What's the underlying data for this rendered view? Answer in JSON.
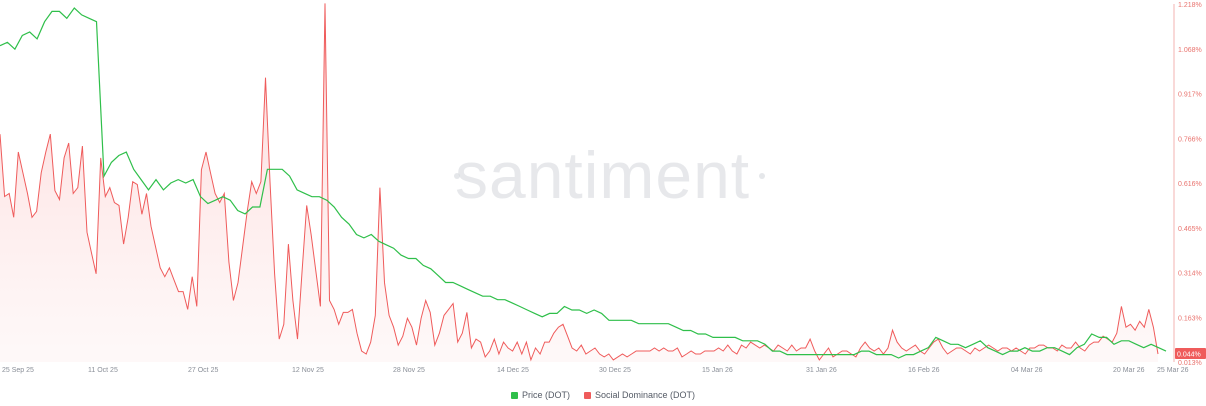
{
  "chart_data": {
    "type": "line",
    "watermark": "santiment",
    "x_tick_labels": [
      "25 Sep 25",
      "11 Oct 25",
      "27 Oct 25",
      "12 Nov 25",
      "28 Nov 25",
      "14 Dec 25",
      "30 Dec 25",
      "15 Jan 26",
      "31 Jan 26",
      "16 Feb 26",
      "04 Mar 26",
      "20 Mar 26",
      "25 Mar 26"
    ],
    "y_right_ticks": [
      "1.218%",
      "1.068%",
      "0.917%",
      "0.766%",
      "0.616%",
      "0.465%",
      "0.314%",
      "0.163%",
      "0.013%"
    ],
    "y_right_range": [
      0.013,
      1.218
    ],
    "current_value_label": "0.044%",
    "colors": {
      "price": "#2fbf4a",
      "social": "#ef5b5b",
      "fill": "#fde4e4"
    },
    "series": [
      {
        "name": "Price (DOT)",
        "axis": "hidden",
        "color": "#2fbf4a",
        "values": [
          94,
          95,
          93,
          97,
          98,
          96,
          101,
          104,
          104,
          102,
          105,
          103,
          102,
          101,
          56,
          60,
          62,
          63,
          58,
          55,
          52,
          55,
          52,
          54,
          55,
          54,
          55,
          50,
          48,
          49,
          50,
          49,
          46,
          45,
          47,
          47,
          58,
          58,
          58,
          56,
          52,
          51,
          50,
          50,
          49,
          47,
          44,
          42,
          39,
          38,
          39,
          37,
          36,
          35,
          33,
          32,
          32,
          30,
          29,
          27,
          25,
          25,
          24,
          23,
          22,
          21,
          21,
          20,
          20,
          19,
          18,
          17,
          16,
          15,
          16,
          16,
          18,
          17,
          17,
          16,
          17,
          16,
          14,
          14,
          14,
          14,
          13,
          13,
          13,
          13,
          13,
          12,
          11,
          11,
          10,
          10,
          9,
          9,
          9,
          9,
          8,
          8,
          8,
          7,
          5,
          5,
          4,
          4,
          4,
          4,
          4,
          4,
          4,
          4,
          4,
          4,
          5,
          5,
          4,
          4,
          4,
          3,
          4,
          4,
          5,
          6,
          9,
          8,
          7,
          7,
          6,
          7,
          8,
          6,
          5,
          4,
          5,
          5,
          6,
          5,
          5,
          6,
          6,
          5,
          4,
          6,
          7,
          10,
          9,
          9,
          7,
          8,
          8,
          7,
          6,
          7,
          6,
          5
        ]
      },
      {
        "name": "Social Dominance (DOT)",
        "axis": "right",
        "color": "#ef5b5b",
        "values": [
          0.78,
          0.57,
          0.58,
          0.5,
          0.72,
          0.65,
          0.58,
          0.5,
          0.52,
          0.65,
          0.72,
          0.78,
          0.59,
          0.56,
          0.7,
          0.75,
          0.58,
          0.6,
          0.74,
          0.45,
          0.38,
          0.31,
          0.7,
          0.57,
          0.6,
          0.55,
          0.54,
          0.41,
          0.5,
          0.62,
          0.61,
          0.51,
          0.58,
          0.47,
          0.4,
          0.33,
          0.3,
          0.33,
          0.29,
          0.25,
          0.25,
          0.19,
          0.3,
          0.2,
          0.66,
          0.72,
          0.65,
          0.58,
          0.55,
          0.58,
          0.35,
          0.22,
          0.28,
          0.4,
          0.52,
          0.62,
          0.58,
          0.62,
          0.97,
          0.62,
          0.31,
          0.09,
          0.14,
          0.41,
          0.22,
          0.09,
          0.32,
          0.54,
          0.44,
          0.32,
          0.2,
          1.22,
          0.22,
          0.19,
          0.14,
          0.18,
          0.18,
          0.19,
          0.11,
          0.05,
          0.04,
          0.08,
          0.17,
          0.6,
          0.28,
          0.17,
          0.13,
          0.07,
          0.1,
          0.16,
          0.13,
          0.07,
          0.16,
          0.22,
          0.18,
          0.07,
          0.11,
          0.17,
          0.19,
          0.21,
          0.08,
          0.11,
          0.18,
          0.06,
          0.09,
          0.08,
          0.03,
          0.05,
          0.09,
          0.04,
          0.08,
          0.06,
          0.05,
          0.08,
          0.04,
          0.08,
          0.02,
          0.06,
          0.04,
          0.08,
          0.08,
          0.11,
          0.13,
          0.14,
          0.1,
          0.06,
          0.05,
          0.07,
          0.04,
          0.05,
          0.06,
          0.04,
          0.03,
          0.04,
          0.02,
          0.03,
          0.04,
          0.03,
          0.04,
          0.05,
          0.05,
          0.05,
          0.05,
          0.06,
          0.05,
          0.06,
          0.05,
          0.05,
          0.06,
          0.03,
          0.04,
          0.05,
          0.04,
          0.04,
          0.05,
          0.05,
          0.05,
          0.06,
          0.05,
          0.07,
          0.05,
          0.04,
          0.07,
          0.06,
          0.08,
          0.07,
          0.06,
          0.07,
          0.06,
          0.05,
          0.07,
          0.06,
          0.05,
          0.07,
          0.05,
          0.06,
          0.06,
          0.09,
          0.05,
          0.02,
          0.04,
          0.06,
          0.03,
          0.04,
          0.05,
          0.05,
          0.04,
          0.03,
          0.06,
          0.08,
          0.06,
          0.05,
          0.06,
          0.04,
          0.06,
          0.12,
          0.08,
          0.06,
          0.05,
          0.06,
          0.07,
          0.05,
          0.04,
          0.06,
          0.08,
          0.09,
          0.06,
          0.04,
          0.05,
          0.06,
          0.06,
          0.05,
          0.04,
          0.06,
          0.05,
          0.06,
          0.07,
          0.06,
          0.05,
          0.06,
          0.06,
          0.05,
          0.06,
          0.05,
          0.04,
          0.06,
          0.06,
          0.07,
          0.07,
          0.06,
          0.06,
          0.05,
          0.07,
          0.06,
          0.06,
          0.08,
          0.06,
          0.05,
          0.07,
          0.08,
          0.08,
          0.1,
          0.09,
          0.08,
          0.11,
          0.2,
          0.13,
          0.14,
          0.12,
          0.15,
          0.13,
          0.19,
          0.13,
          0.04
        ]
      }
    ],
    "legend": [
      "Price (DOT)",
      "Social Dominance (DOT)"
    ],
    "legend_position": "bottom-center",
    "grid": false
  }
}
